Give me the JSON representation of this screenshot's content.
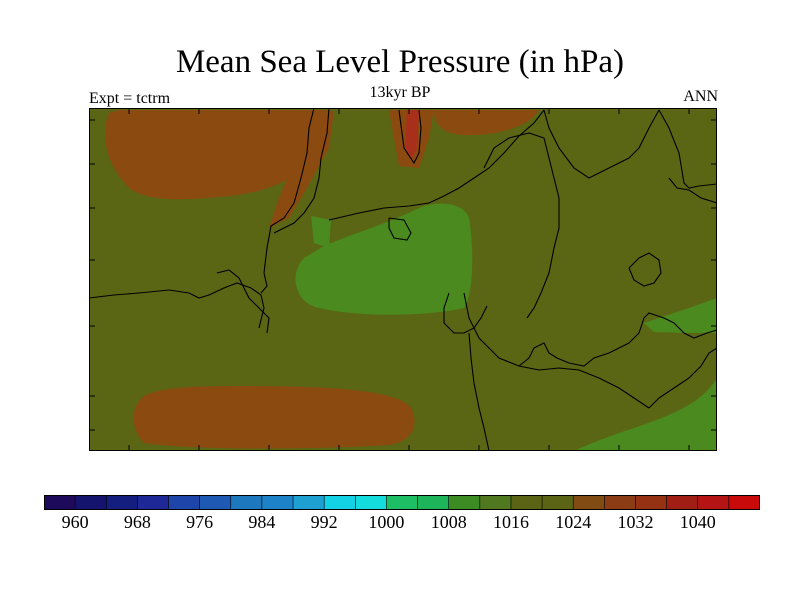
{
  "title": "Mean Sea Level Pressure (in hPa)",
  "subtitle": "13kyr BP",
  "experiment_label": "Expt = tctrm",
  "season_label": "ANN",
  "colors": {
    "background_field": "#5a6614",
    "high_region": "#8a4a10",
    "very_high_region": "#a8301a",
    "low_region": "#4a8a1e",
    "coastline": "#000000"
  },
  "colorbar": {
    "colors": [
      "#1e0a5a",
      "#14146e",
      "#141e7e",
      "#1e2896",
      "#1e46aa",
      "#1e5ab4",
      "#1e78be",
      "#1e82c8",
      "#1ea0d2",
      "#14d2e6",
      "#14dcdc",
      "#1ebe64",
      "#1eb45a",
      "#3c8c23",
      "#50781e",
      "#5a6414",
      "#5a6414",
      "#824b14",
      "#8c3c14",
      "#963214",
      "#a01e14",
      "#b41414",
      "#c80a0a"
    ],
    "labels": [
      "960",
      "968",
      "976",
      "984",
      "992",
      "1000",
      "1008",
      "1016",
      "1024",
      "1032",
      "1040"
    ]
  }
}
